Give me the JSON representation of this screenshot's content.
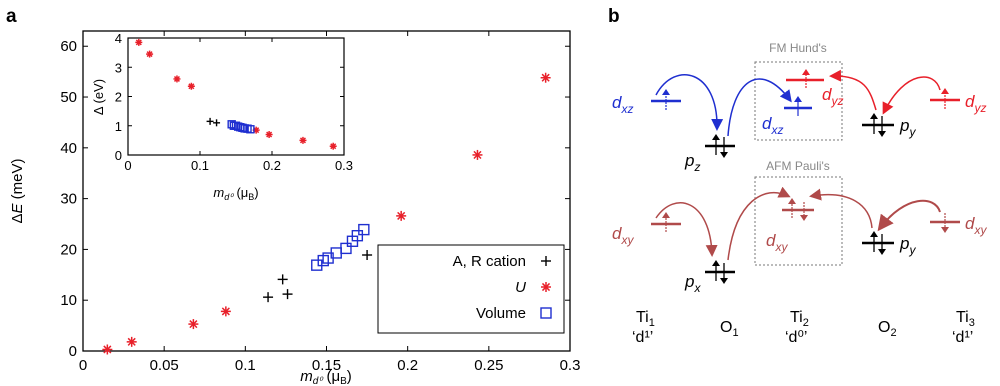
{
  "panel_a_label": "a",
  "panel_b_label": "b",
  "chart_data": [
    {
      "type": "scatter",
      "id": "main",
      "xlabel_base": "m",
      "xlabel_sub": "d⁰",
      "xlabel_unit": "(μ",
      "xlabel_unit_sub": "B",
      "xlabel_unit_close": ")",
      "ylabel": "ΔE (meV)",
      "xlim": [
        0,
        0.3
      ],
      "ylim": [
        0,
        63
      ],
      "xticks": [
        "0",
        "0.05",
        "0.1",
        "0.15",
        "0.2",
        "0.25",
        "0.3"
      ],
      "yticks": [
        "0",
        "10",
        "20",
        "30",
        "40",
        "50",
        "60"
      ],
      "xtick_values": [
        0,
        0.05,
        0.1,
        0.15,
        0.2,
        0.25,
        0.3
      ],
      "ytick_values": [
        0,
        10,
        20,
        30,
        40,
        50,
        60
      ],
      "legend_position": "bottom-right",
      "series": [
        {
          "name": "A, R cation",
          "marker": "plus",
          "color": "#000000",
          "x": [
            0.114,
            0.123,
            0.126,
            0.175
          ],
          "y": [
            10.6,
            14.1,
            11.2,
            18.9
          ]
        },
        {
          "name": "U",
          "marker": "star",
          "color": "#e8202a",
          "x": [
            0.015,
            0.03,
            0.068,
            0.088,
            0.196,
            0.243,
            0.285
          ],
          "y": [
            0.3,
            1.8,
            5.3,
            7.8,
            26.6,
            38.6,
            53.8
          ]
        },
        {
          "name": "Volume",
          "marker": "square",
          "color": "#1f2fd0",
          "x": [
            0.144,
            0.148,
            0.151,
            0.156,
            0.162,
            0.166,
            0.169,
            0.173
          ],
          "y": [
            16.9,
            17.8,
            18.3,
            19.3,
            20.2,
            21.6,
            22.7,
            23.9
          ]
        }
      ]
    },
    {
      "type": "scatter",
      "id": "inset",
      "ylabel": "Δ (eV)",
      "xlabel_base": "m",
      "xlabel_sub": "d⁰",
      "xlabel_unit": "(μ",
      "xlabel_unit_sub": "B",
      "xlabel_unit_close": ")",
      "xlim": [
        0,
        0.3
      ],
      "ylim": [
        0,
        4
      ],
      "xticks": [
        "0",
        "0.1",
        "0.2",
        "0.3"
      ],
      "yticks": [
        "0",
        "1",
        "2",
        "3",
        "4"
      ],
      "xtick_values": [
        0,
        0.1,
        0.2,
        0.3
      ],
      "ytick_values": [
        0,
        1,
        2,
        3,
        4
      ],
      "series": [
        {
          "marker": "plus",
          "color": "#000000",
          "x": [
            0.114,
            0.123
          ],
          "y": [
            1.15,
            1.1
          ]
        },
        {
          "marker": "star",
          "color": "#e8202a",
          "x": [
            0.015,
            0.03,
            0.068,
            0.088,
            0.178,
            0.196,
            0.243,
            0.285
          ],
          "y": [
            3.85,
            3.45,
            2.6,
            2.35,
            0.85,
            0.7,
            0.5,
            0.3
          ]
        },
        {
          "marker": "square",
          "color": "#1f2fd0",
          "x": [
            0.144,
            0.147,
            0.15,
            0.153,
            0.156,
            0.159,
            0.162,
            0.166,
            0.17
          ],
          "y": [
            1.05,
            1.0,
            1.0,
            0.97,
            0.95,
            0.93,
            0.91,
            0.9,
            0.88
          ]
        }
      ]
    }
  ],
  "diagram": {
    "box_fm_label": "FM Hund's",
    "box_afm_label": "AFM Pauli's",
    "orbitals": {
      "dxz_left": {
        "base": "d",
        "sub": "xz",
        "color": "#1f2fd0"
      },
      "pz": {
        "base": "p",
        "sub": "z",
        "color": "#000000"
      },
      "dxz_mid": {
        "base": "d",
        "sub": "xz",
        "color": "#1f2fd0"
      },
      "dyz_mid": {
        "base": "d",
        "sub": "yz",
        "color": "#e8202a"
      },
      "py_top": {
        "base": "p",
        "sub": "y",
        "color": "#000000"
      },
      "dyz_right": {
        "base": "d",
        "sub": "yz",
        "color": "#e8202a"
      },
      "dxy_left": {
        "base": "d",
        "sub": "xy",
        "color": "#b04a4a"
      },
      "px": {
        "base": "p",
        "sub": "x",
        "color": "#000000"
      },
      "dxy_mid": {
        "base": "d",
        "sub": "xy",
        "color": "#b04a4a"
      },
      "py_bot": {
        "base": "p",
        "sub": "y",
        "color": "#000000"
      },
      "dxy_right": {
        "base": "d",
        "sub": "xy",
        "color": "#b04a4a"
      }
    },
    "sites": [
      {
        "name": "Ti",
        "sub": "1",
        "config": "‘d¹’"
      },
      {
        "name": "O",
        "sub": "1",
        "config": ""
      },
      {
        "name": "Ti",
        "sub": "2",
        "config": "‘d⁰’"
      },
      {
        "name": "O",
        "sub": "2",
        "config": ""
      },
      {
        "name": "Ti",
        "sub": "3",
        "config": "‘d¹’"
      }
    ]
  }
}
